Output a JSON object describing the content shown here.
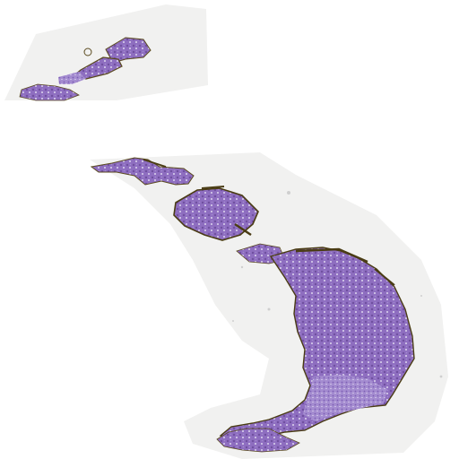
{
  "image": {
    "background_color": "#ffffff",
    "slide_glass_color": "#f1f1f0",
    "tissue_colors": {
      "hematoxylin_purple": "#8e6ec0",
      "light_purple": "#a48cd0",
      "dark_purple": "#6f4fa0",
      "brown_edge": "#5a4a1e",
      "pale_gap": "#e7e2ef"
    },
    "regions": [
      "small-fragment-top-left",
      "large-elongated-specimen"
    ]
  }
}
